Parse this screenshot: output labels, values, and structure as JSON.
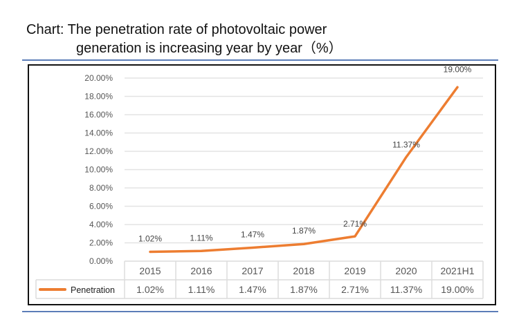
{
  "title_line1": "Chart: The penetration rate of photovoltaic power",
  "title_line2": "generation is increasing year by year（%）",
  "chart_data": {
    "type": "line",
    "title": "Chart: The penetration rate of photovoltaic power generation is increasing year by year（%）",
    "categories": [
      "2015",
      "2016",
      "2017",
      "2018",
      "2019",
      "2020",
      "2021H1"
    ],
    "series": [
      {
        "name": "Penetration",
        "values": [
          1.02,
          1.11,
          1.47,
          1.87,
          2.71,
          11.37,
          19.0
        ],
        "color": "#ed7d31"
      }
    ],
    "data_labels": [
      "1.02%",
      "1.11%",
      "1.47%",
      "1.87%",
      "2.71%",
      "11.37%",
      "19.00%"
    ],
    "ylim": [
      0,
      20
    ],
    "yticks": [
      "0.00%",
      "2.00%",
      "4.00%",
      "6.00%",
      "8.00%",
      "10.00%",
      "12.00%",
      "14.00%",
      "16.00%",
      "18.00%",
      "20.00%"
    ],
    "grid": true,
    "legend": "data-table-left",
    "data_table": true
  }
}
